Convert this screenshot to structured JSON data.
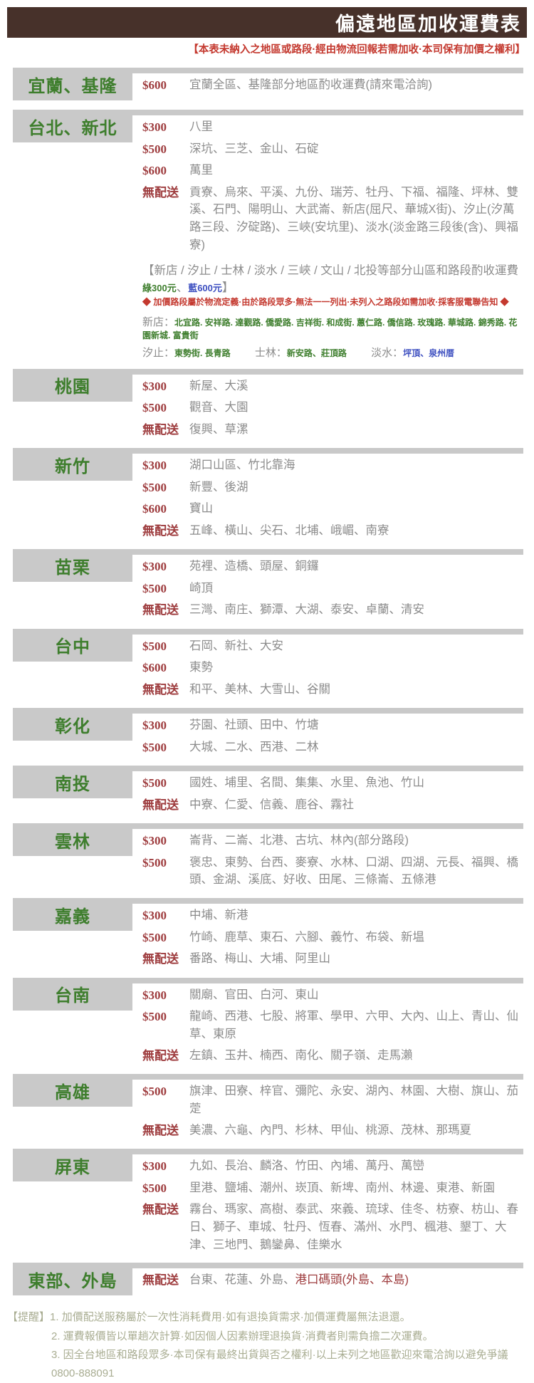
{
  "header": {
    "title": "偏遠地區加收運費表",
    "subtitle": "【本表未納入之地區或路段·經由物流回報若需加收·本司保有加價之權利】"
  },
  "colors": {
    "header_brown": "#47312a",
    "label_grey": "#c9c9c9",
    "region_green": "#3e7e2d",
    "fee_dark_red": "#9e3c3e",
    "alert_red": "#c4392f",
    "area_grey": "#8c8c8c",
    "road_blue": "#3d4fc0",
    "footer_olive": "#a9ad92"
  },
  "rows": [
    {
      "region": "宜蘭、基隆",
      "lines": [
        {
          "fee": "$600",
          "areas": "宜蘭全區、基隆部分地區酌收運費(請來電洽詢)"
        }
      ]
    },
    {
      "region": "台北、新北",
      "lines": [
        {
          "fee": "$300",
          "areas": "八里"
        },
        {
          "fee": "$500",
          "areas": "深坑、三芝、金山、石碇"
        },
        {
          "fee": "$600",
          "areas": "萬里"
        },
        {
          "fee": "無配送",
          "areas": "貢寮、烏來、平溪、九份、瑞芳、牡丹、下福、福隆、坪林、雙溪、石門、陽明山、大武崙、新店(屈尺、華城X街)、汐止(汐萬路三段、汐碇路)、三峽(安坑里)、淡水(淡金路三段後(含)、興福寮)"
        }
      ],
      "special": {
        "heading": "【新店 / 汐止 / 士林 / 淡水 / 三峽 / 文山 / 北投等部分山區和路段酌收運費 ",
        "green_label": "綠300元",
        "separator": "、",
        "blue_label": "藍600元",
        "bracket_close": "】",
        "note": "◆ 加價路段屬於物流定義·由於路段眾多·無法一一列出·未列入之路段如需加收·採客服電聯告知 ◆",
        "roads": [
          {
            "label": "新店：",
            "list": "北宜路. 安祥路. 達觀路. 僑愛路. 吉祥街. 和成街. 蕙仁路. 僑信路. 玫瑰路. 華城路. 錦秀路. 花園新城. 富貴街"
          },
          {
            "label": "汐止：",
            "list": "東勢街. 長青路"
          },
          {
            "label": "士林：",
            "list": "新安路、莊頂路"
          },
          {
            "label": "淡水：",
            "list": "坪頂、泉州厝"
          }
        ]
      }
    },
    {
      "region": "桃園",
      "lines": [
        {
          "fee": "$300",
          "areas": "新屋、大溪"
        },
        {
          "fee": "$500",
          "areas": "觀音、大園"
        },
        {
          "fee": "無配送",
          "areas": "復興、草漯"
        }
      ]
    },
    {
      "region": "新竹",
      "lines": [
        {
          "fee": "$300",
          "areas": "湖口山區、竹北靠海"
        },
        {
          "fee": "$500",
          "areas": "新豐、後湖"
        },
        {
          "fee": "$600",
          "areas": "寶山"
        },
        {
          "fee": "無配送",
          "areas": "五峰、橫山、尖石、北埔、峨嵋、南寮"
        }
      ]
    },
    {
      "region": "苗栗",
      "lines": [
        {
          "fee": "$300",
          "areas": "苑裡、造橋、頭屋、銅鑼"
        },
        {
          "fee": "$500",
          "areas": "崎頂"
        },
        {
          "fee": "無配送",
          "areas": "三灣、南庄、獅潭、大湖、泰安、卓蘭、清安"
        }
      ]
    },
    {
      "region": "台中",
      "lines": [
        {
          "fee": "$500",
          "areas": "石岡、新社、大安"
        },
        {
          "fee": "$600",
          "areas": "東勢"
        },
        {
          "fee": "無配送",
          "areas": "和平、美林、大雪山、谷關"
        }
      ]
    },
    {
      "region": "彰化",
      "lines": [
        {
          "fee": "$300",
          "areas": "芬園、社頭、田中、竹塘"
        },
        {
          "fee": "$500",
          "areas": "大城、二水、西港、二林"
        }
      ]
    },
    {
      "region": "南投",
      "lines": [
        {
          "fee": "$500",
          "areas": "國姓、埔里、名間、集集、水里、魚池、竹山"
        },
        {
          "fee": "無配送",
          "areas": "中寮、仁愛、信義、鹿谷、霧社"
        }
      ]
    },
    {
      "region": "雲林",
      "lines": [
        {
          "fee": "$300",
          "areas": "崙背、二崙、北港、古坑、林內(部分路段)"
        },
        {
          "fee": "$500",
          "areas": "褒忠、東勢、台西、麥寮、水林、口湖、四湖、元長、福興、橋頭、金湖、溪底、好收、田尾、三條崙、五條港"
        }
      ]
    },
    {
      "region": "嘉義",
      "lines": [
        {
          "fee": "$300",
          "areas": "中埔、新港"
        },
        {
          "fee": "$500",
          "areas": "竹崎、鹿草、東石、六腳、義竹、布袋、新塭"
        },
        {
          "fee": "無配送",
          "areas": "番路、梅山、大埔、阿里山"
        }
      ]
    },
    {
      "region": "台南",
      "lines": [
        {
          "fee": "$300",
          "areas": "關廟、官田、白河、東山"
        },
        {
          "fee": "$500",
          "areas": "龍崎、西港、七股、將軍、學甲、六甲、大內、山上、青山、仙草、東原"
        },
        {
          "fee": "無配送",
          "areas": "左鎮、玉井、楠西、南化、關子嶺、走馬瀨"
        }
      ]
    },
    {
      "region": "高雄",
      "lines": [
        {
          "fee": "$500",
          "areas": "旗津、田寮、梓官、彌陀、永安、湖內、林園、大樹、旗山、茄萣"
        },
        {
          "fee": "無配送",
          "areas": "美濃、六龜、內門、杉林、甲仙、桃源、茂林、那瑪夏"
        }
      ]
    },
    {
      "region": "屏東",
      "lines": [
        {
          "fee": "$300",
          "areas": "九如、長治、麟洛、竹田、內埔、萬丹、萬巒"
        },
        {
          "fee": "$500",
          "areas": "里港、鹽埔、潮州、崁頂、新埤、南州、林邊、東港、新園"
        },
        {
          "fee": "無配送",
          "areas": "霧台、瑪家、高樹、泰武、來義、琉球、佳冬、枋寮、枋山、春日、獅子、車城、牡丹、恆春、滿州、水門、楓港、墾丁、大津、三地門、鵝鑾鼻、佳樂水"
        }
      ]
    },
    {
      "region": "東部、外島",
      "lines": [
        {
          "fee": "無配送",
          "areas": "台東、花蓮、外島、",
          "areas_red": "港口碼頭(外島、本島)"
        }
      ]
    }
  ],
  "footer": {
    "label": "【提醒】",
    "notes": [
      "1. 加價配送服務屬於一次性消耗費用·如有退換貨需求·加價運費屬無法退還。",
      "2. 運費報價皆以單趟次計算·如因個人因素辦理退換貨·消費者則需負擔二次運費。",
      "3. 因全台地區和路段眾多·本司保有最終出貨與否之權利·以上未列之地區歡迎來電洽詢以避免爭議0800-888091"
    ]
  }
}
